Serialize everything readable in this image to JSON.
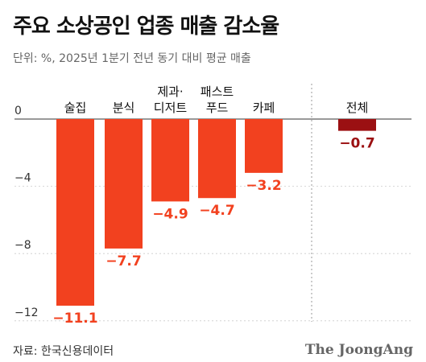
{
  "header": {
    "title": "주요 소상공인 업종 매출 감소율",
    "subtitle": "단위: %, 2025년 1분기 전년 동기 대비 평균 매출"
  },
  "footer": {
    "source": "자료: 한국신용데이터",
    "logo": "The JoongAng"
  },
  "chart_data": {
    "type": "bar",
    "categories": [
      [
        "술집"
      ],
      [
        "분식"
      ],
      [
        "제과·",
        "디저트"
      ],
      [
        "패스트",
        "푸드"
      ],
      [
        "카페"
      ],
      [
        "전체"
      ]
    ],
    "values": [
      -11.1,
      -7.7,
      -4.9,
      -4.7,
      -3.2,
      -0.7
    ],
    "value_labels": [
      "−11.1",
      "−7.7",
      "−4.9",
      "−4.7",
      "−3.2",
      "−0.7"
    ],
    "yticks": [
      0,
      -4,
      -8,
      -12
    ],
    "ytick_labels": [
      "0",
      "−4",
      "−8",
      "−12"
    ],
    "ylim": [
      -12.5,
      0
    ],
    "colors": {
      "bar": "#f2411f",
      "total_bar": "#9b1012",
      "label": "#f2411f",
      "total_label": "#9b1012",
      "gridline": "#cccccc",
      "separator": "#999999"
    }
  }
}
